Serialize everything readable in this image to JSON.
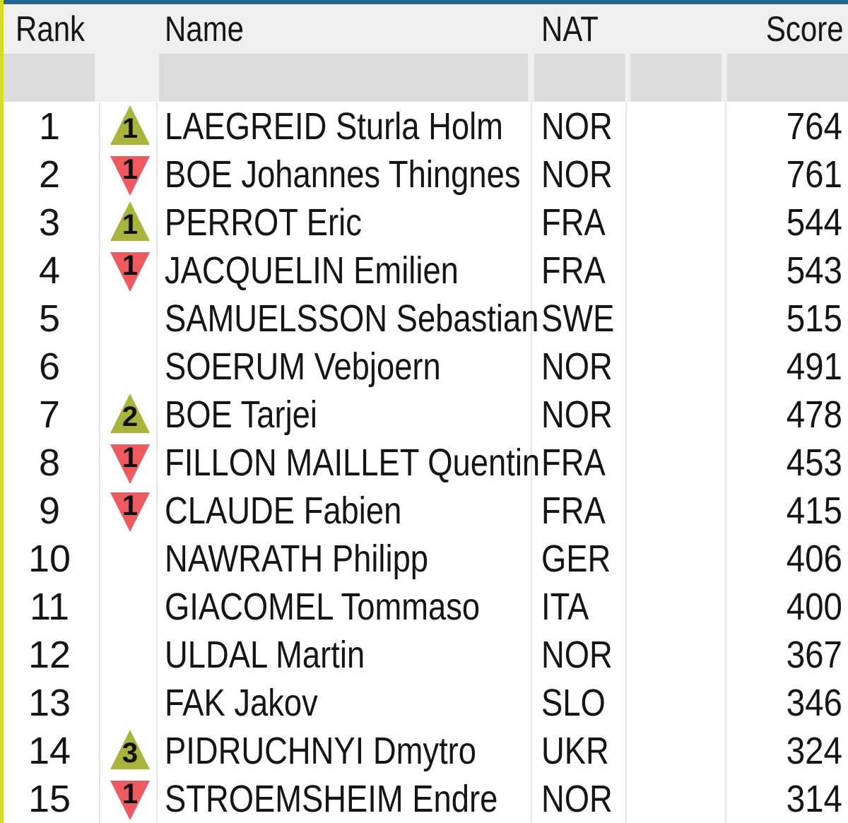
{
  "table": {
    "columns": {
      "rank": "Rank",
      "name": "Name",
      "nat": "NAT",
      "score": "Score"
    },
    "colors": {
      "up": "#a9b43c",
      "down": "#ee5a60"
    },
    "rows": [
      {
        "rank": "1",
        "change_dir": "up",
        "change": "1",
        "name": "LAEGREID Sturla Holm",
        "nat": "NOR",
        "score": "764"
      },
      {
        "rank": "2",
        "change_dir": "down",
        "change": "1",
        "name": "BOE Johannes Thingnes",
        "nat": "NOR",
        "score": "761"
      },
      {
        "rank": "3",
        "change_dir": "up",
        "change": "1",
        "name": "PERROT Eric",
        "nat": "FRA",
        "score": "544"
      },
      {
        "rank": "4",
        "change_dir": "down",
        "change": "1",
        "name": "JACQUELIN Emilien",
        "nat": "FRA",
        "score": "543"
      },
      {
        "rank": "5",
        "change_dir": "",
        "change": "",
        "name": "SAMUELSSON Sebastian",
        "nat": "SWE",
        "score": "515"
      },
      {
        "rank": "6",
        "change_dir": "",
        "change": "",
        "name": "SOERUM Vebjoern",
        "nat": "NOR",
        "score": "491"
      },
      {
        "rank": "7",
        "change_dir": "up",
        "change": "2",
        "name": "BOE Tarjei",
        "nat": "NOR",
        "score": "478"
      },
      {
        "rank": "8",
        "change_dir": "down",
        "change": "1",
        "name": "FILLON MAILLET Quentin",
        "nat": "FRA",
        "score": "453"
      },
      {
        "rank": "9",
        "change_dir": "down",
        "change": "1",
        "name": "CLAUDE Fabien",
        "nat": "FRA",
        "score": "415"
      },
      {
        "rank": "10",
        "change_dir": "",
        "change": "",
        "name": "NAWRATH Philipp",
        "nat": "GER",
        "score": "406"
      },
      {
        "rank": "11",
        "change_dir": "",
        "change": "",
        "name": "GIACOMEL Tommaso",
        "nat": "ITA",
        "score": "400"
      },
      {
        "rank": "12",
        "change_dir": "",
        "change": "",
        "name": "ULDAL Martin",
        "nat": "NOR",
        "score": "367"
      },
      {
        "rank": "13",
        "change_dir": "",
        "change": "",
        "name": "FAK Jakov",
        "nat": "SLO",
        "score": "346"
      },
      {
        "rank": "14",
        "change_dir": "up",
        "change": "3",
        "name": "PIDRUCHNYI Dmytro",
        "nat": "UKR",
        "score": "324"
      },
      {
        "rank": "15",
        "change_dir": "down",
        "change": "1",
        "name": "STROEMSHEIM Endre",
        "nat": "NOR",
        "score": "314"
      }
    ]
  }
}
